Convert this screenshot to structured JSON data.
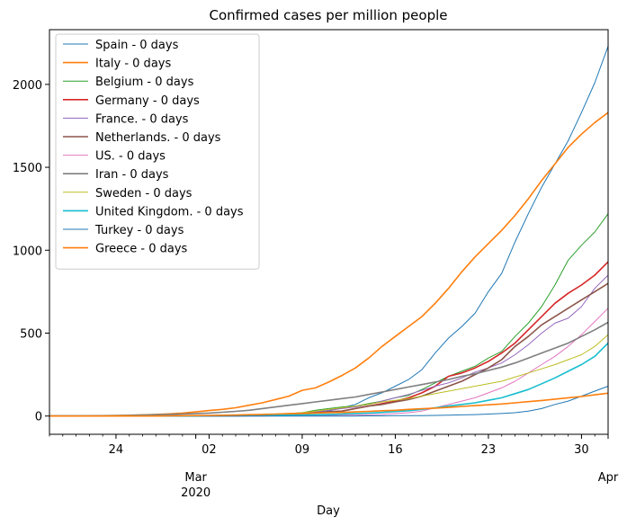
{
  "chart_data": {
    "type": "line",
    "title": "Confirmed cases per million people",
    "xlabel": "Day",
    "ylabel": "",
    "x": [
      "2020-02-19",
      "2020-02-20",
      "2020-02-21",
      "2020-02-22",
      "2020-02-23",
      "2020-02-24",
      "2020-02-25",
      "2020-02-26",
      "2020-02-27",
      "2020-02-28",
      "2020-02-29",
      "2020-03-01",
      "2020-03-02",
      "2020-03-03",
      "2020-03-04",
      "2020-03-05",
      "2020-03-06",
      "2020-03-07",
      "2020-03-08",
      "2020-03-09",
      "2020-03-10",
      "2020-03-11",
      "2020-03-12",
      "2020-03-13",
      "2020-03-14",
      "2020-03-15",
      "2020-03-16",
      "2020-03-17",
      "2020-03-18",
      "2020-03-19",
      "2020-03-20",
      "2020-03-21",
      "2020-03-22",
      "2020-03-23",
      "2020-03-24",
      "2020-03-25",
      "2020-03-26",
      "2020-03-27",
      "2020-03-28",
      "2020-03-29",
      "2020-03-30",
      "2020-03-31",
      "2020-04-01"
    ],
    "xlim": [
      "2020-02-19",
      "2020-04-01"
    ],
    "ylim": [
      -110,
      2330
    ],
    "y_ticks": [
      0,
      500,
      1000,
      1500,
      2000
    ],
    "x_major_ticks": [
      {
        "date": "2020-02-24",
        "label": "24"
      },
      {
        "date": "2020-03-02",
        "label": "02"
      },
      {
        "date": "2020-03-09",
        "label": "09"
      },
      {
        "date": "2020-03-16",
        "label": "16"
      },
      {
        "date": "2020-03-23",
        "label": "23"
      },
      {
        "date": "2020-03-30",
        "label": "30"
      }
    ],
    "x_secondary_labels": [
      {
        "date": "2020-03-01",
        "label": "Mar\n2020"
      },
      {
        "date": "2020-04-01",
        "label": "Apr"
      }
    ],
    "grid": false,
    "legend_position": "top-left",
    "series": [
      {
        "name": "Spain - 0 days",
        "color": "#1f77b4",
        "width": 1.0,
        "values": [
          0,
          0,
          0,
          0,
          0,
          0,
          0,
          0,
          0,
          0,
          0,
          0,
          0,
          0,
          0,
          1,
          2,
          4,
          8,
          12,
          20,
          30,
          50,
          70,
          110,
          140,
          180,
          220,
          280,
          380,
          470,
          540,
          620,
          750,
          860,
          1050,
          1220,
          1380,
          1520,
          1660,
          1830,
          2010,
          2230
        ]
      },
      {
        "name": "Italy - 0 days",
        "color": "#ff7f0e",
        "width": 1.6,
        "values": [
          0,
          0,
          0,
          1,
          2,
          4,
          5,
          7,
          10,
          13,
          18,
          25,
          33,
          40,
          50,
          65,
          80,
          100,
          120,
          155,
          170,
          205,
          245,
          290,
          350,
          420,
          480,
          540,
          600,
          680,
          770,
          870,
          960,
          1040,
          1120,
          1210,
          1310,
          1420,
          1520,
          1620,
          1700,
          1770,
          1830
        ]
      },
      {
        "name": "Belgium - 0 days",
        "color": "#2ca02c",
        "width": 1.0,
        "values": [
          0,
          0,
          0,
          0,
          0,
          0,
          0,
          0,
          0,
          0,
          0,
          0,
          0,
          1,
          2,
          4,
          7,
          10,
          13,
          20,
          35,
          45,
          55,
          60,
          75,
          90,
          110,
          125,
          160,
          200,
          240,
          270,
          300,
          350,
          390,
          480,
          560,
          660,
          790,
          940,
          1030,
          1110,
          1220
        ]
      },
      {
        "name": "Germany - 0 days",
        "color": "#d62728",
        "width": 1.6,
        "values": [
          0,
          0,
          0,
          0,
          0,
          0,
          0,
          0,
          0,
          0,
          1,
          2,
          2,
          3,
          4,
          5,
          8,
          10,
          12,
          15,
          20,
          25,
          30,
          45,
          60,
          75,
          90,
          110,
          140,
          180,
          240,
          260,
          290,
          330,
          380,
          440,
          520,
          600,
          680,
          740,
          790,
          850,
          930
        ]
      },
      {
        "name": "France. - 0 days",
        "color": "#9467bd",
        "width": 1.0,
        "values": [
          0,
          0,
          0,
          0,
          0,
          0,
          0,
          0,
          0,
          0,
          1,
          2,
          2,
          3,
          4,
          6,
          8,
          10,
          15,
          20,
          25,
          35,
          45,
          55,
          70,
          90,
          110,
          130,
          155,
          180,
          200,
          230,
          265,
          290,
          320,
          370,
          430,
          500,
          560,
          590,
          660,
          770,
          850
        ]
      },
      {
        "name": "Netherlands. - 0 days",
        "color": "#8c564b",
        "width": 1.6,
        "values": [
          0,
          0,
          0,
          0,
          0,
          0,
          0,
          0,
          0,
          0,
          0,
          0,
          1,
          1,
          2,
          3,
          5,
          8,
          10,
          15,
          20,
          25,
          30,
          45,
          60,
          70,
          85,
          100,
          120,
          150,
          180,
          210,
          250,
          290,
          340,
          420,
          480,
          550,
          600,
          650,
          700,
          750,
          800
        ]
      },
      {
        "name": "US. - 0 days",
        "color": "#e377c2",
        "width": 1.0,
        "values": [
          0,
          0,
          0,
          0,
          0,
          0,
          0,
          0,
          0,
          0,
          0,
          0,
          0,
          0,
          0,
          0,
          0,
          1,
          1,
          2,
          3,
          4,
          5,
          6,
          8,
          10,
          15,
          20,
          30,
          50,
          70,
          90,
          110,
          140,
          170,
          210,
          260,
          310,
          360,
          420,
          490,
          570,
          650
        ]
      },
      {
        "name": "Iran - 0 days",
        "color": "#7f7f7f",
        "width": 1.6,
        "values": [
          0,
          0,
          0,
          0,
          1,
          2,
          4,
          6,
          8,
          10,
          12,
          15,
          18,
          23,
          28,
          35,
          45,
          55,
          65,
          75,
          85,
          95,
          105,
          115,
          130,
          145,
          160,
          175,
          190,
          205,
          220,
          240,
          255,
          275,
          295,
          320,
          350,
          380,
          410,
          440,
          480,
          520,
          565
        ]
      },
      {
        "name": "Sweden - 0 days",
        "color": "#bcbd22",
        "width": 1.0,
        "values": [
          0,
          0,
          0,
          0,
          0,
          0,
          0,
          0,
          0,
          0,
          0,
          1,
          1,
          2,
          3,
          5,
          8,
          12,
          16,
          20,
          30,
          40,
          50,
          60,
          70,
          85,
          95,
          105,
          120,
          135,
          150,
          165,
          180,
          195,
          210,
          235,
          260,
          285,
          310,
          340,
          370,
          420,
          490
        ]
      },
      {
        "name": "United Kingdom. - 0 days",
        "color": "#17becf",
        "width": 1.6,
        "values": [
          0,
          0,
          0,
          0,
          0,
          0,
          0,
          0,
          0,
          0,
          0,
          0,
          1,
          1,
          2,
          3,
          4,
          5,
          6,
          7,
          8,
          10,
          12,
          15,
          18,
          22,
          27,
          32,
          40,
          50,
          60,
          70,
          80,
          95,
          110,
          135,
          160,
          195,
          230,
          270,
          310,
          360,
          440
        ]
      },
      {
        "name": "Turkey - 0 days",
        "color": "#1f77b4",
        "width": 1.0,
        "values": [
          0,
          0,
          0,
          0,
          0,
          0,
          0,
          0,
          0,
          0,
          0,
          0,
          0,
          0,
          0,
          0,
          0,
          0,
          0,
          0,
          0,
          0,
          0,
          0,
          1,
          1,
          2,
          2,
          3,
          4,
          5,
          7,
          9,
          12,
          15,
          20,
          30,
          45,
          70,
          90,
          120,
          150,
          180
        ]
      },
      {
        "name": "Greece - 0 days",
        "color": "#ff7f0e",
        "width": 1.6,
        "values": [
          0,
          0,
          0,
          0,
          0,
          0,
          0,
          0,
          0,
          1,
          2,
          3,
          4,
          5,
          6,
          8,
          10,
          12,
          14,
          16,
          18,
          20,
          22,
          25,
          28,
          32,
          35,
          40,
          44,
          48,
          52,
          58,
          63,
          68,
          73,
          80,
          87,
          94,
          102,
          110,
          118,
          128,
          138
        ]
      }
    ]
  }
}
